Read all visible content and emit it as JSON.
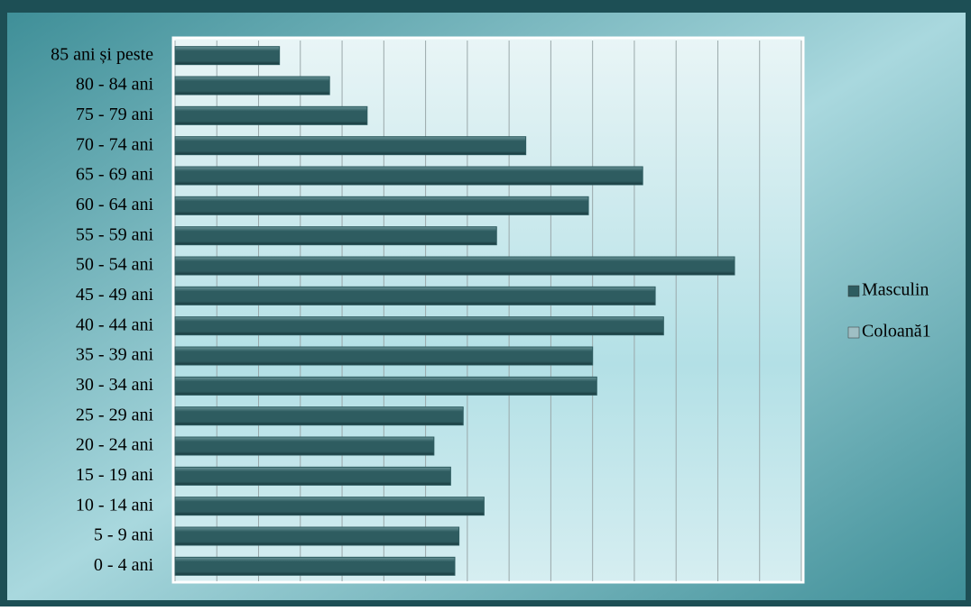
{
  "chart_data": {
    "type": "bar",
    "orientation": "horizontal",
    "categories": [
      "0 - 4 ani",
      "5 - 9 ani",
      "10 - 14 ani",
      "15 - 19 ani",
      "20 - 24 ani",
      "25 - 29 ani",
      "30 - 34 ani",
      "35 - 39 ani",
      "40 - 44 ani",
      "45 - 49 ani",
      "50 - 54 ani",
      "55 - 59 ani",
      "60 - 64 ani",
      "65 - 69 ani",
      "70 - 74 ani",
      "75 - 79 ani",
      "80 - 84 ani",
      "85 ani și peste"
    ],
    "series": [
      {
        "name": "Masculin",
        "color": "#2e5c60",
        "values": [
          6.7,
          6.8,
          7.4,
          6.6,
          6.2,
          6.9,
          10.1,
          10.0,
          11.7,
          11.5,
          13.4,
          7.7,
          9.9,
          11.2,
          8.4,
          4.6,
          3.7,
          2.5
        ]
      },
      {
        "name": "Coloană1",
        "color": "#9fbfc4",
        "values": [
          null,
          null,
          null,
          null,
          null,
          null,
          null,
          null,
          null,
          null,
          null,
          null,
          null,
          null,
          null,
          null,
          null,
          null
        ]
      }
    ],
    "xlim": [
      0,
      15
    ],
    "xticks": [
      0,
      1,
      2,
      3,
      4,
      5,
      6,
      7,
      8,
      9,
      10,
      11,
      12,
      13,
      14,
      15
    ],
    "grid": true,
    "legend": "right"
  }
}
